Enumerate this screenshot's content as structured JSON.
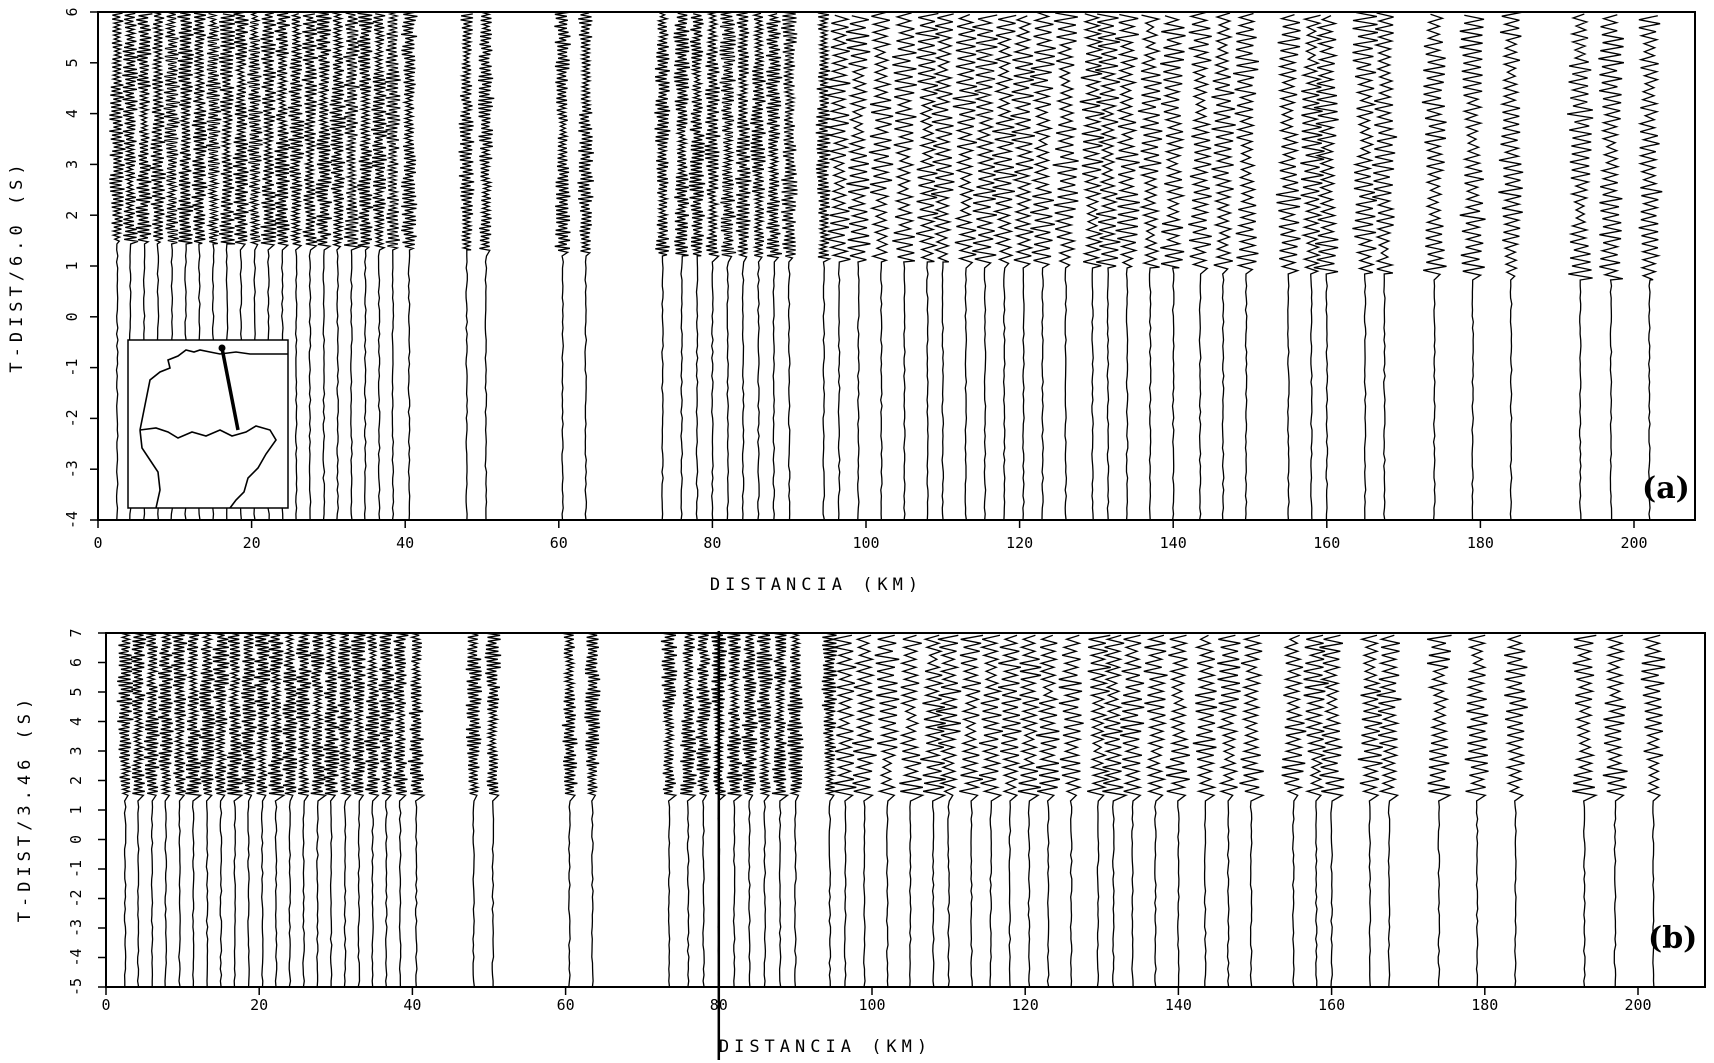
{
  "chart_data": [
    {
      "panel_tag": "(a)",
      "type": "line",
      "xlabel": "DISTANCIA (KM)",
      "ylabel": "T-DIST/6.0 (S)",
      "xlim": [
        0,
        210
      ],
      "ylim": [
        -4,
        6
      ],
      "x_ticks": [
        0,
        20,
        40,
        60,
        80,
        100,
        120,
        140,
        160,
        180,
        200
      ],
      "y_ticks": [
        -4,
        -3,
        -2,
        -1,
        0,
        1,
        2,
        3,
        4,
        5,
        6
      ],
      "trace_distances_km": [
        2.5,
        4.2,
        6,
        7.8,
        9.6,
        11.4,
        13.2,
        15,
        16.8,
        18.6,
        20.4,
        22.2,
        24,
        25.8,
        27.6,
        29.4,
        31.2,
        33,
        34.8,
        36.6,
        38.4,
        40.5,
        48,
        50.5,
        60.5,
        63.5,
        73.5,
        76,
        78,
        80,
        82,
        84,
        86,
        88,
        90,
        94.5,
        96.5,
        99,
        102,
        105,
        108,
        110,
        113,
        115.5,
        118,
        120.5,
        123,
        126,
        129.5,
        131.5,
        134,
        137,
        140,
        143.5,
        146.5,
        149.5,
        155,
        158,
        160,
        165,
        167.5,
        174,
        179,
        184,
        193,
        197,
        202
      ],
      "first_arrival": {
        "near_offset_s": 1.5,
        "far_offset_s": 0.7
      },
      "inset": "location-map"
    },
    {
      "panel_tag": "(b)",
      "type": "line",
      "xlabel": "DISTANCIA (KM)",
      "ylabel": "T-DIST/3.46 (S)",
      "xlim": [
        0,
        210
      ],
      "ylim": [
        -5,
        7
      ],
      "x_ticks": [
        0,
        20,
        40,
        60,
        80,
        100,
        120,
        140,
        160,
        180,
        200
      ],
      "y_ticks": [
        -5,
        -4,
        -3,
        -2,
        -1,
        0,
        1,
        2,
        3,
        4,
        5,
        6,
        7
      ],
      "trace_distances_km": [
        2.5,
        4.2,
        6,
        7.8,
        9.6,
        11.4,
        13.2,
        15,
        16.8,
        18.6,
        20.4,
        22.2,
        24,
        25.8,
        27.6,
        29.4,
        31.2,
        33,
        34.8,
        36.6,
        38.4,
        40.5,
        48,
        50.5,
        60.5,
        63.5,
        73.5,
        76,
        78,
        80,
        82,
        84,
        86,
        88,
        90,
        94.5,
        96.5,
        99,
        102,
        105,
        108,
        110,
        113,
        115.5,
        118,
        120.5,
        123,
        126,
        129.5,
        131.5,
        134,
        137,
        140,
        143.5,
        146.5,
        149.5,
        155,
        158,
        160,
        165,
        167.5,
        174,
        179,
        184,
        193,
        197,
        202
      ],
      "first_arrival": {
        "near_offset_s": 1.5,
        "far_offset_s": 1.5
      },
      "marker_line_km": 80
    }
  ]
}
